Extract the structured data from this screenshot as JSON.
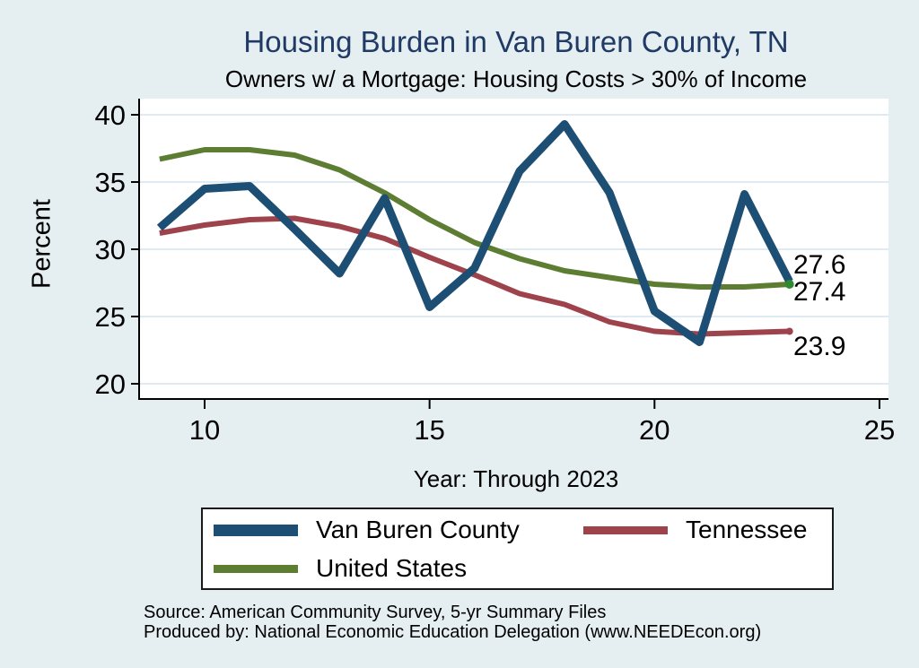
{
  "title": "Housing Burden in Van Buren County, TN",
  "subtitle": "Owners w/ a Mortgage: Housing Costs > 30% of Income",
  "y_axis_title": "Percent",
  "x_axis_title": "Year: Through 2023",
  "end_labels": {
    "van_buren_county": "27.6",
    "united_states": "27.4",
    "tennessee": "23.9"
  },
  "legend": {
    "items": [
      {
        "label": "Van Buren County",
        "color": "#1d4e74",
        "thick": 13
      },
      {
        "label": "Tennessee",
        "color": "#9e434b",
        "thick": 9
      },
      {
        "label": "United States",
        "color": "#5d7d33",
        "thick": 9
      }
    ]
  },
  "source": {
    "line1": "Source: American Community Survey, 5-yr Summary Files",
    "line2": "Produced by: National Economic Education Delegation (www.NEEDEcon.org)"
  },
  "colors": {
    "background": "#e5eef1",
    "plot_background": "#ffffff",
    "gridline": "#dfeaf2",
    "axis": "#000000",
    "title_text": "#203a66",
    "van_buren_line": "#1d4e74",
    "tennessee_line": "#9e434b",
    "united_states_line": "#5d7d33",
    "united_states_end_dot": "#2e8b2e"
  },
  "chart_data": {
    "type": "line",
    "title": "Housing Burden in Van Buren County, TN",
    "subtitle": "Owners w/ a Mortgage: Housing Costs > 30% of Income",
    "xlabel": "Year: Through 2023",
    "ylabel": "Percent",
    "x": [
      9,
      10,
      11,
      12,
      13,
      14,
      15,
      16,
      17,
      18,
      19,
      20,
      21,
      22,
      23
    ],
    "x_ticks": [
      10,
      15,
      20,
      25
    ],
    "y_ticks": [
      40,
      35,
      30,
      25,
      20
    ],
    "xlim": [
      8.5,
      25.2
    ],
    "ylim": [
      20,
      40
    ],
    "grid": true,
    "legend_position": "bottom",
    "series": [
      {
        "name": "Van Buren County",
        "color": "#1d4e74",
        "width": 9,
        "end_label": "27.6",
        "values": [
          31.6,
          34.5,
          34.7,
          31.5,
          28.2,
          33.8,
          25.7,
          28.6,
          35.8,
          39.3,
          34.2,
          25.4,
          23.1,
          34.1,
          27.6
        ]
      },
      {
        "name": "Tennessee",
        "color": "#9e434b",
        "width": 6,
        "end_label": "23.9",
        "end_marker": {
          "color": "#9e434b",
          "r": 4
        },
        "values": [
          31.2,
          31.8,
          32.2,
          32.3,
          31.7,
          30.8,
          29.4,
          28.1,
          26.7,
          25.9,
          24.6,
          23.9,
          23.7,
          23.8,
          23.9
        ]
      },
      {
        "name": "United States",
        "color": "#5d7d33",
        "width": 6,
        "end_label": "27.4",
        "end_marker": {
          "color": "#2e8b2e",
          "r": 5
        },
        "values": [
          36.7,
          37.4,
          37.4,
          37.0,
          35.9,
          34.2,
          32.2,
          30.5,
          29.3,
          28.4,
          27.9,
          27.4,
          27.2,
          27.2,
          27.4
        ]
      }
    ]
  }
}
